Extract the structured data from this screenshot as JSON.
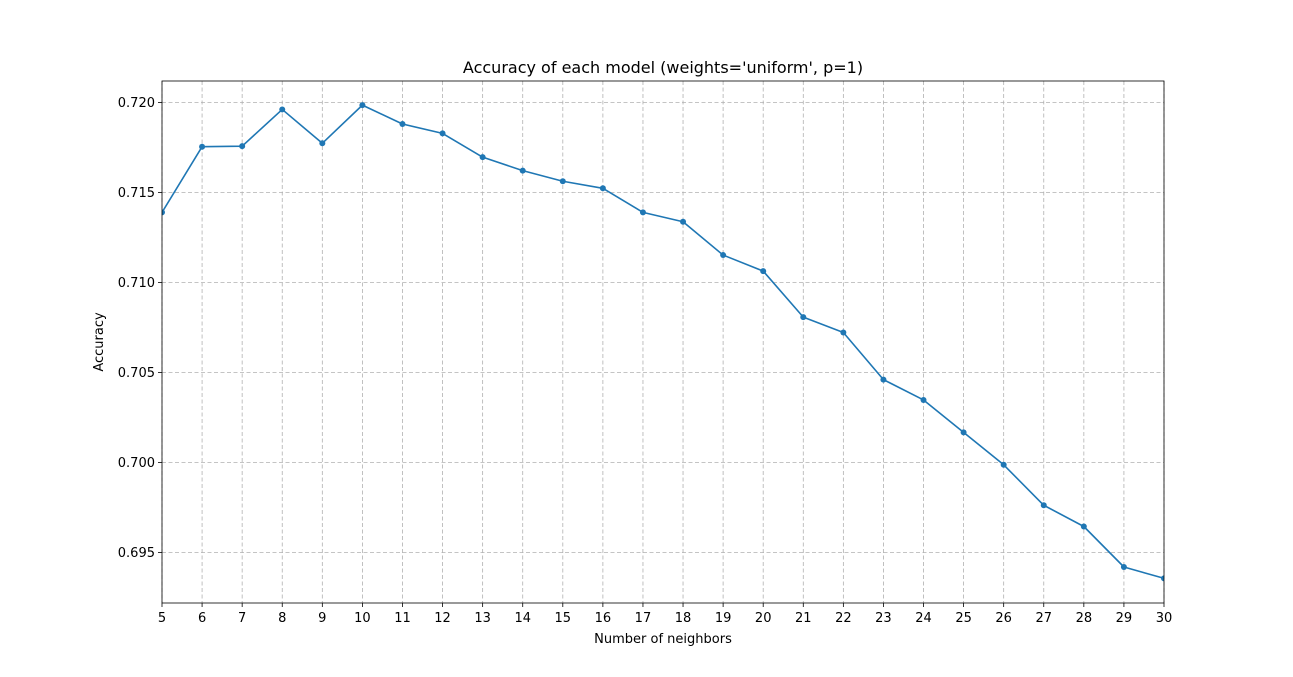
{
  "chart_data": {
    "type": "line",
    "title": "Accuracy of each model (weights='uniform', p=1)",
    "xlabel": "Number of neighbors",
    "ylabel": "Accuracy",
    "xlim": [
      5,
      30
    ],
    "ylim": [
      0.6922,
      0.7212
    ],
    "grid": true,
    "marker": "circle",
    "x": [
      5,
      6,
      7,
      8,
      9,
      10,
      11,
      12,
      13,
      14,
      15,
      16,
      17,
      18,
      19,
      20,
      21,
      22,
      23,
      24,
      25,
      26,
      27,
      28,
      29,
      30
    ],
    "x_ticks": [
      "5",
      "6",
      "7",
      "8",
      "9",
      "10",
      "11",
      "12",
      "13",
      "14",
      "15",
      "16",
      "17",
      "18",
      "19",
      "20",
      "21",
      "22",
      "23",
      "24",
      "25",
      "26",
      "27",
      "28",
      "29",
      "30"
    ],
    "y_ticks": [
      {
        "value": 0.695,
        "label": "0.695"
      },
      {
        "value": 0.7,
        "label": "0.700"
      },
      {
        "value": 0.705,
        "label": "0.705"
      },
      {
        "value": 0.71,
        "label": "0.710"
      },
      {
        "value": 0.715,
        "label": "0.715"
      },
      {
        "value": 0.72,
        "label": "0.720"
      }
    ],
    "series": [
      {
        "color": "#1f77b4",
        "values": [
          0.7139,
          0.71755,
          0.71758,
          0.71962,
          0.71774,
          0.71986,
          0.71881,
          0.71829,
          0.71697,
          0.71622,
          0.71563,
          0.71524,
          0.7139,
          0.71338,
          0.71153,
          0.71064,
          0.70808,
          0.70723,
          0.70461,
          0.70348,
          0.70168,
          0.69988,
          0.69763,
          0.69645,
          0.6942,
          0.69357
        ]
      }
    ]
  }
}
